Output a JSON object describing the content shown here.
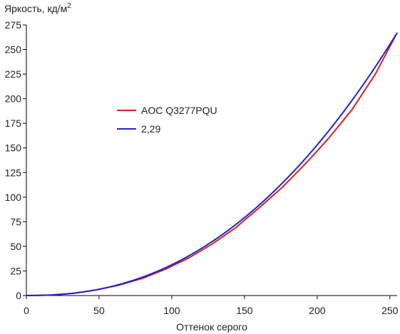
{
  "chart_data": {
    "type": "line",
    "ylabel": "Яркость, кд/м",
    "ylabel_superscript": "2",
    "xlabel": "Оттенок серого",
    "xlim": [
      0,
      255
    ],
    "ylim": [
      0,
      275
    ],
    "x_ticks": [
      0,
      50,
      100,
      150,
      200,
      250
    ],
    "y_ticks": [
      0,
      25,
      50,
      75,
      100,
      125,
      150,
      175,
      200,
      225,
      250,
      275
    ],
    "grid": false,
    "legend_position": "center-left",
    "series": [
      {
        "name": "AOC Q3277PQU",
        "color": "#d62020",
        "x": [
          0,
          16,
          32,
          48,
          64,
          80,
          96,
          112,
          128,
          144,
          160,
          176,
          192,
          208,
          224,
          240,
          255
        ],
        "y": [
          0,
          0.5,
          2.3,
          5.7,
          10.7,
          17.5,
          27,
          38.5,
          52.5,
          69,
          89,
          110,
          134,
          160,
          189,
          225,
          267
        ]
      },
      {
        "name": "2,29",
        "color": "#1f24c8",
        "gamma": 2.29,
        "y_max": 267
      }
    ]
  }
}
